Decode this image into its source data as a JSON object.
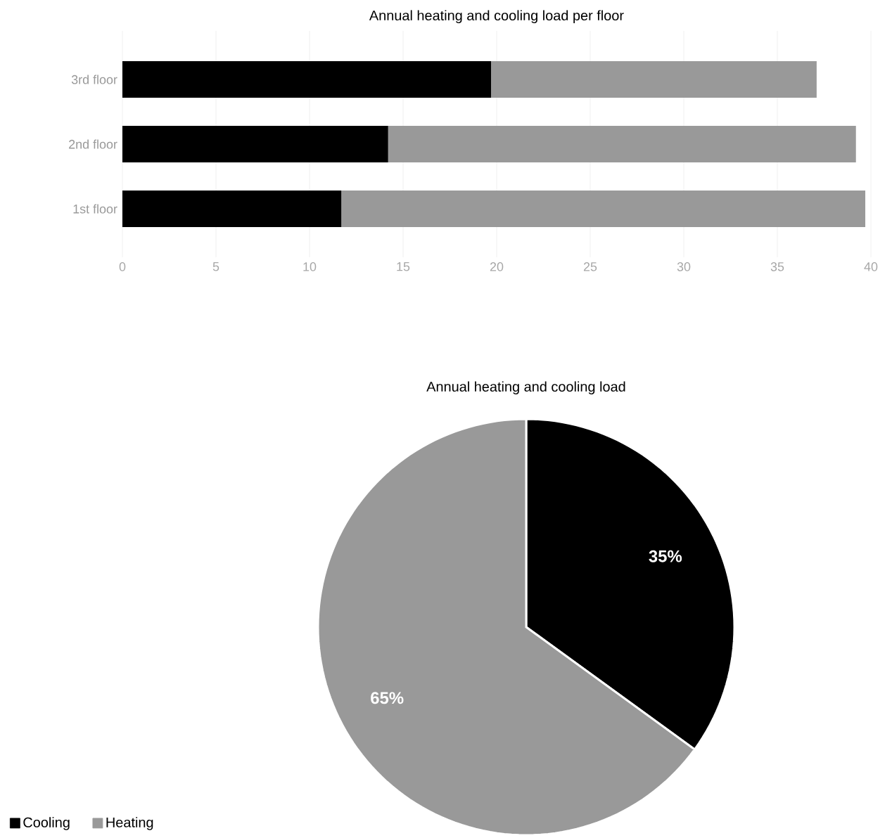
{
  "chart_data": [
    {
      "type": "bar",
      "title": "Annual heating and cooling load per floor",
      "orientation": "horizontal",
      "stacked": true,
      "categories": [
        "3rd floor",
        "2nd floor",
        "1st floor"
      ],
      "series": [
        {
          "color": "#000000",
          "values": [
            19.7,
            14.2,
            11.7
          ]
        },
        {
          "color": "#999999",
          "values": [
            17.4,
            25.0,
            28.0
          ]
        }
      ],
      "xlim": [
        0,
        40
      ],
      "xticks": [
        0,
        5,
        10,
        15,
        20,
        25,
        30,
        35,
        40
      ],
      "grid": "x"
    },
    {
      "type": "pie",
      "title": "Annual heating and cooling load",
      "categories": [
        "Cooling",
        "Heating"
      ],
      "values": [
        35,
        65
      ],
      "colors": [
        "#000000",
        "#999999"
      ],
      "value_labels": [
        "35%",
        "65%"
      ],
      "legend": "bottom left"
    }
  ]
}
